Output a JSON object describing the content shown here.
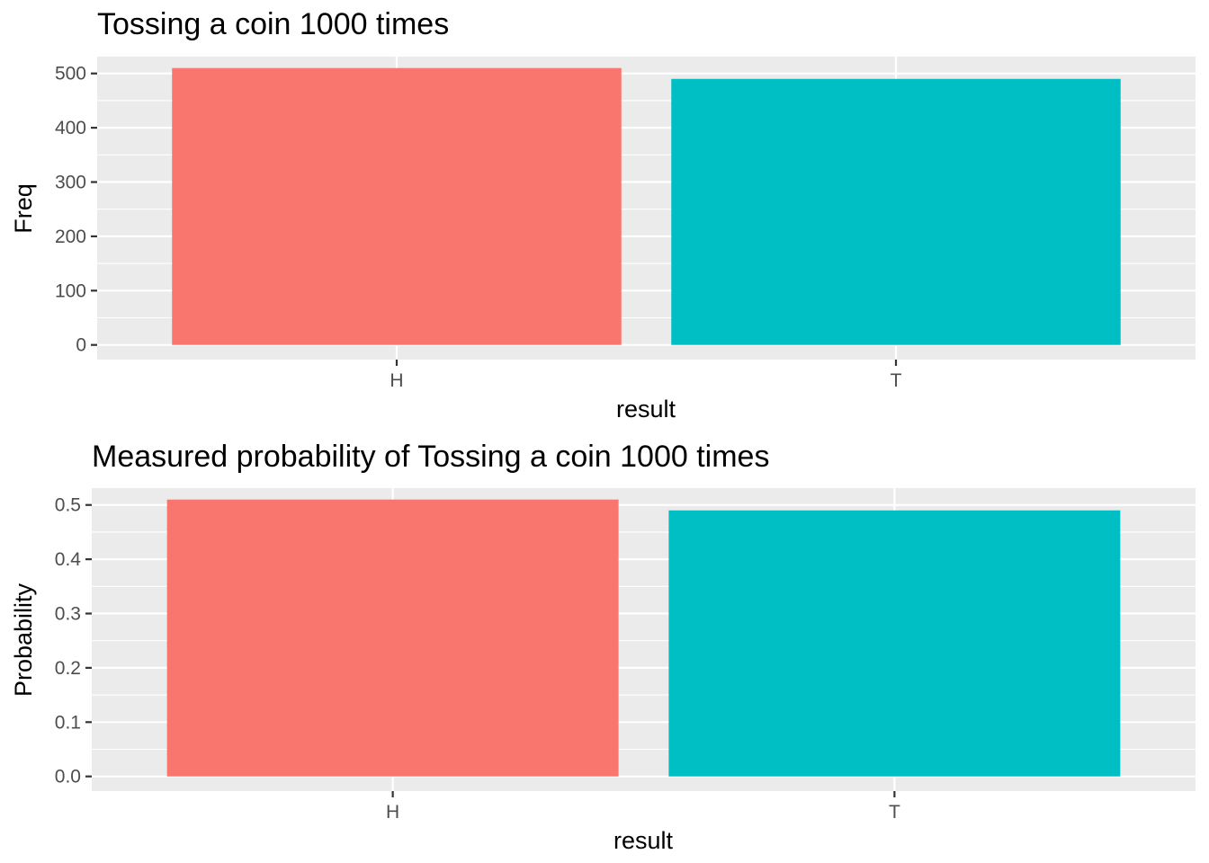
{
  "colors": {
    "panel_background": "#EBEBEB",
    "grid_line": "#FFFFFF",
    "tick_mark": "#333333",
    "tick_text": "#4D4D4D"
  },
  "chart_data": [
    {
      "type": "bar",
      "title": "Tossing a coin 1000 times",
      "xlabel": "result",
      "ylabel": "Freq",
      "categories": [
        "H",
        "T"
      ],
      "values": [
        510,
        490
      ],
      "bar_colors": [
        "#F8766D",
        "#00BFC4"
      ],
      "yticks": [
        "0",
        "100",
        "200",
        "300",
        "400",
        "500"
      ],
      "ylim": [
        -27,
        531
      ],
      "grid": true,
      "legend": "none"
    },
    {
      "type": "bar",
      "title": "Measured probability of Tossing a coin 1000 times",
      "xlabel": "result",
      "ylabel": "Probability",
      "categories": [
        "H",
        "T"
      ],
      "values": [
        0.51,
        0.49
      ],
      "bar_colors": [
        "#F8766D",
        "#00BFC4"
      ],
      "yticks": [
        "0.0",
        "0.1",
        "0.2",
        "0.3",
        "0.4",
        "0.5"
      ],
      "ylim": [
        -0.027,
        0.531
      ],
      "grid": true,
      "legend": "none"
    }
  ]
}
